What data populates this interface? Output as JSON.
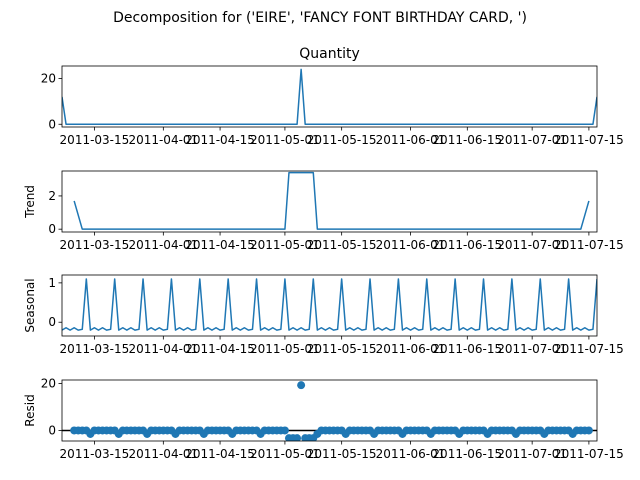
{
  "figure": {
    "suptitle": "Decomposition for ('EIRE', 'FANCY FONT BIRTHDAY CARD, ')",
    "line_color": "#1f77b4"
  },
  "chart_data": [
    {
      "type": "line",
      "name": "observed",
      "title": "Quantity",
      "ylabel": "",
      "ylim": [
        -1.2,
        25.5
      ],
      "yticks": [
        0,
        20
      ],
      "xtick_labels": [
        "2011-03-15",
        "2011-04-01",
        "2011-04-15",
        "2011-05-01",
        "2011-05-15",
        "2011-06-01",
        "2011-06-15",
        "2011-07-01",
        "2011-07-15"
      ],
      "x": [
        "2011-03-07",
        "2011-03-08",
        "2011-05-04",
        "2011-05-05",
        "2011-05-06",
        "2011-07-16",
        "2011-07-17"
      ],
      "y": [
        12,
        0,
        0,
        24,
        0,
        0,
        12
      ]
    },
    {
      "type": "line",
      "name": "trend",
      "title": "",
      "ylabel": "Trend",
      "ylim": [
        -0.17,
        3.5
      ],
      "yticks": [
        0,
        2
      ],
      "xtick_labels": [
        "2011-03-15",
        "2011-04-01",
        "2011-04-15",
        "2011-05-01",
        "2011-05-15",
        "2011-06-01",
        "2011-06-15",
        "2011-07-01",
        "2011-07-15"
      ],
      "x": [
        "2011-03-10",
        "2011-03-12",
        "2011-05-01",
        "2011-05-02",
        "2011-05-08",
        "2011-05-09",
        "2011-07-13",
        "2011-07-15"
      ],
      "y": [
        1.7,
        0,
        0,
        3.4,
        3.4,
        0,
        0,
        1.7
      ]
    },
    {
      "type": "line",
      "name": "seasonal",
      "title": "",
      "ylabel": "Seasonal",
      "ylim": [
        -0.35,
        1.2
      ],
      "yticks": [
        0,
        1
      ],
      "xtick_labels": [
        "2011-03-15",
        "2011-04-01",
        "2011-04-15",
        "2011-05-01",
        "2011-05-15",
        "2011-06-01",
        "2011-06-15",
        "2011-07-01",
        "2011-07-15"
      ],
      "period_days": 7,
      "pattern": [
        1.1,
        -0.2,
        -0.14,
        -0.2,
        -0.14,
        -0.2,
        -0.18
      ],
      "first_peak": "2011-03-13"
    },
    {
      "type": "scatter",
      "name": "resid",
      "title": "",
      "ylabel": "Resid",
      "ylim": [
        -4.5,
        21.5
      ],
      "yticks": [
        0,
        20
      ],
      "xtick_labels": [
        "2011-03-15",
        "2011-04-01",
        "2011-04-15",
        "2011-05-01",
        "2011-05-15",
        "2011-06-01",
        "2011-06-15",
        "2011-07-01",
        "2011-07-15"
      ],
      "date_start": "2011-03-10",
      "date_end": "2011-07-15",
      "baseline": 0,
      "dip_period_days": 7,
      "dip_value": -1.5,
      "outliers": [
        {
          "x": "2011-05-02",
          "y": -3.3
        },
        {
          "x": "2011-05-03",
          "y": -3.3
        },
        {
          "x": "2011-05-04",
          "y": -3.3
        },
        {
          "x": "2011-05-05",
          "y": 19.3
        },
        {
          "x": "2011-05-06",
          "y": -3.3
        },
        {
          "x": "2011-05-07",
          "y": -3.3
        },
        {
          "x": "2011-05-08",
          "y": -3.3
        }
      ]
    }
  ]
}
